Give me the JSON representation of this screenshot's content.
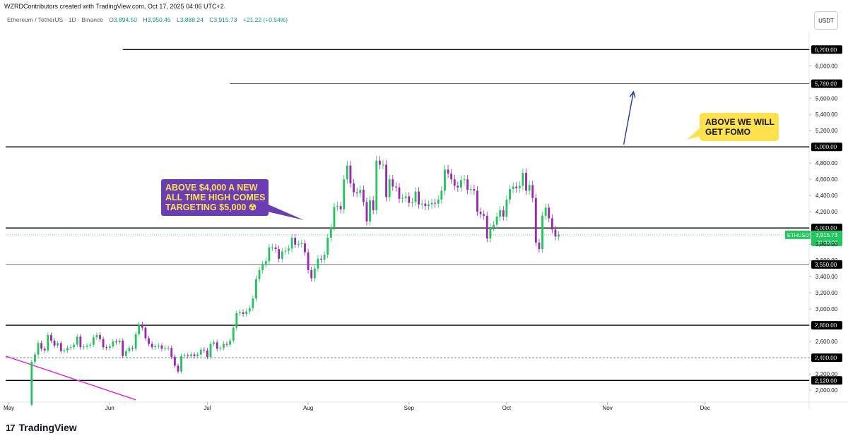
{
  "header": {
    "credit": "WZRDContributors created with TradingView.com, Oct 17, 2025 04:06 UTC+2",
    "symbol": "Ethereum / TetherUS · 1D · Binance",
    "o_label": "O",
    "open": "3,894.50",
    "h_label": "H",
    "high": "3,950.45",
    "l_label": "L",
    "low": "3,888.24",
    "c_label": "C",
    "close": "3,915.73",
    "change": "+21.22 (+0.54%)"
  },
  "unit": "USDT",
  "colors": {
    "up": "#089981",
    "upfill": "#22c55e",
    "down": "#9c27b0",
    "line": "#000000",
    "trend": "#e91ee0",
    "arrow": "#1e3aa8",
    "current": "#22c55e"
  },
  "notes": {
    "purple": "ABOVE $4,000 A NEW ALL TIME HIGH COMES TARGETING $5,000 ☢",
    "yellow": "ABOVE WE WILL GET FOMO"
  },
  "brand": {
    "logo": "17",
    "name": "TradingView"
  },
  "chart_data": {
    "type": "candlestick",
    "ylim": [
      1870,
      6420
    ],
    "y_ticks": [
      2000,
      2200,
      2400,
      2600,
      2800,
      3000,
      3200,
      3400,
      3600,
      3800,
      4000,
      4200,
      4400,
      4600,
      4800,
      5000,
      5200,
      5400,
      5600,
      5800,
      6000,
      6200
    ],
    "y_tick_labels": [
      "2,000.00",
      "2,200.00",
      "2,400.00",
      "2,600.00",
      "2,800.00",
      "3,000.00",
      "3,200.00",
      "3,400.00",
      "3,600.00",
      "3,800.00",
      "4,000.00",
      "4,200.00",
      "4,400.00",
      "4,600.00",
      "4,800.00",
      "5,000.00",
      "5,200.00",
      "5,400.00",
      "5,600.00",
      "5,800.00",
      "6,000.00",
      "6,200.00"
    ],
    "x_range": [
      "2025-04-30",
      "2026-01-02"
    ],
    "x_ticks": [
      {
        "date": "2025-05-01",
        "label": "May"
      },
      {
        "date": "2025-06-01",
        "label": "Jun"
      },
      {
        "date": "2025-07-01",
        "label": "Jul"
      },
      {
        "date": "2025-08-01",
        "label": "Aug"
      },
      {
        "date": "2025-09-01",
        "label": "Sep"
      },
      {
        "date": "2025-10-01",
        "label": "Oct"
      },
      {
        "date": "2025-11-01",
        "label": "Nov"
      },
      {
        "date": "2025-12-01",
        "label": "Dec"
      }
    ],
    "levels": [
      {
        "price": 6200,
        "label": "6,200.00",
        "from": "2025-06-05",
        "style": "solid"
      },
      {
        "price": 5780,
        "label": "5,780.00",
        "from": "2025-07-08",
        "style": "thin"
      },
      {
        "price": 5000,
        "label": "5,000.00",
        "from": "2025-04-30",
        "style": "solid"
      },
      {
        "price": 4000,
        "label": "4,000.00",
        "from": "2025-04-30",
        "style": "solid"
      },
      {
        "price": 3550,
        "label": "3,550.00",
        "from": "2025-04-30",
        "style": "thin"
      },
      {
        "price": 2800,
        "label": "2,800.00",
        "from": "2025-04-30",
        "style": "solid"
      },
      {
        "price": 2400,
        "label": "2,400.00",
        "from": "2025-04-30",
        "style": "dashed"
      },
      {
        "price": 2120,
        "label": "2,120.00",
        "from": "2025-04-30",
        "style": "solid"
      }
    ],
    "current": {
      "price": 3915.73,
      "symbol": "ETHUSDT",
      "label": "3,915.73",
      "countdown": "21:53:07"
    },
    "trendline": [
      {
        "date": "2025-04-30",
        "price": 2420
      },
      {
        "date": "2025-06-09",
        "price": 1880
      }
    ],
    "arrow": [
      {
        "date": "2025-11-06",
        "price": 5030
      },
      {
        "date": "2025-11-09",
        "price": 5680
      }
    ],
    "closes": [
      [
        "2025-05-07",
        1820
      ],
      [
        "2025-05-08",
        2350
      ],
      [
        "2025-05-09",
        2440
      ],
      [
        "2025-05-10",
        2580
      ],
      [
        "2025-05-11",
        2510
      ],
      [
        "2025-05-12",
        2490
      ],
      [
        "2025-05-13",
        2680
      ],
      [
        "2025-05-14",
        2610
      ],
      [
        "2025-05-15",
        2550
      ],
      [
        "2025-05-16",
        2580
      ],
      [
        "2025-05-17",
        2480
      ],
      [
        "2025-05-18",
        2490
      ],
      [
        "2025-05-19",
        2520
      ],
      [
        "2025-05-20",
        2530
      ],
      [
        "2025-05-21",
        2560
      ],
      [
        "2025-05-22",
        2660
      ],
      [
        "2025-05-23",
        2530
      ],
      [
        "2025-05-24",
        2535
      ],
      [
        "2025-05-25",
        2550
      ],
      [
        "2025-05-26",
        2560
      ],
      [
        "2025-05-27",
        2650
      ],
      [
        "2025-05-28",
        2680
      ],
      [
        "2025-05-29",
        2630
      ],
      [
        "2025-05-30",
        2530
      ],
      [
        "2025-05-31",
        2520
      ],
      [
        "2025-06-01",
        2540
      ],
      [
        "2025-06-02",
        2600
      ],
      [
        "2025-06-03",
        2590
      ],
      [
        "2025-06-04",
        2610
      ],
      [
        "2025-06-05",
        2420
      ],
      [
        "2025-06-06",
        2480
      ],
      [
        "2025-06-07",
        2520
      ],
      [
        "2025-06-08",
        2510
      ],
      [
        "2025-06-09",
        2690
      ],
      [
        "2025-06-10",
        2810
      ],
      [
        "2025-06-11",
        2770
      ],
      [
        "2025-06-12",
        2640
      ],
      [
        "2025-06-13",
        2570
      ],
      [
        "2025-06-14",
        2530
      ],
      [
        "2025-06-15",
        2540
      ],
      [
        "2025-06-16",
        2550
      ],
      [
        "2025-06-17",
        2510
      ],
      [
        "2025-06-18",
        2520
      ],
      [
        "2025-06-19",
        2520
      ],
      [
        "2025-06-20",
        2410
      ],
      [
        "2025-06-21",
        2300
      ],
      [
        "2025-06-22",
        2230
      ],
      [
        "2025-06-23",
        2420
      ],
      [
        "2025-06-24",
        2430
      ],
      [
        "2025-06-25",
        2420
      ],
      [
        "2025-06-26",
        2440
      ],
      [
        "2025-06-27",
        2420
      ],
      [
        "2025-06-28",
        2440
      ],
      [
        "2025-06-29",
        2500
      ],
      [
        "2025-06-30",
        2490
      ],
      [
        "2025-07-01",
        2410
      ],
      [
        "2025-07-02",
        2570
      ],
      [
        "2025-07-03",
        2590
      ],
      [
        "2025-07-04",
        2510
      ],
      [
        "2025-07-05",
        2520
      ],
      [
        "2025-07-06",
        2570
      ],
      [
        "2025-07-07",
        2560
      ],
      [
        "2025-07-08",
        2610
      ],
      [
        "2025-07-09",
        2770
      ],
      [
        "2025-07-10",
        2950
      ],
      [
        "2025-07-11",
        2960
      ],
      [
        "2025-07-12",
        2940
      ],
      [
        "2025-07-13",
        2970
      ],
      [
        "2025-07-14",
        3010
      ],
      [
        "2025-07-15",
        3130
      ],
      [
        "2025-07-16",
        3370
      ],
      [
        "2025-07-17",
        3480
      ],
      [
        "2025-07-18",
        3550
      ],
      [
        "2025-07-19",
        3590
      ],
      [
        "2025-07-20",
        3760
      ],
      [
        "2025-07-21",
        3760
      ],
      [
        "2025-07-22",
        3740
      ],
      [
        "2025-07-23",
        3620
      ],
      [
        "2025-07-24",
        3710
      ],
      [
        "2025-07-25",
        3720
      ],
      [
        "2025-07-26",
        3745
      ],
      [
        "2025-07-27",
        3880
      ],
      [
        "2025-07-28",
        3795
      ],
      [
        "2025-07-29",
        3805
      ],
      [
        "2025-07-30",
        3810
      ],
      [
        "2025-07-31",
        3700
      ],
      [
        "2025-08-01",
        3480
      ],
      [
        "2025-08-02",
        3380
      ],
      [
        "2025-08-03",
        3500
      ],
      [
        "2025-08-04",
        3620
      ],
      [
        "2025-08-05",
        3610
      ],
      [
        "2025-08-06",
        3670
      ],
      [
        "2025-08-07",
        3880
      ],
      [
        "2025-08-08",
        4010
      ],
      [
        "2025-08-09",
        4260
      ],
      [
        "2025-08-10",
        4270
      ],
      [
        "2025-08-11",
        4230
      ],
      [
        "2025-08-12",
        4600
      ],
      [
        "2025-08-13",
        4770
      ],
      [
        "2025-08-14",
        4550
      ],
      [
        "2025-08-15",
        4440
      ],
      [
        "2025-08-16",
        4430
      ],
      [
        "2025-08-17",
        4470
      ],
      [
        "2025-08-18",
        4320
      ],
      [
        "2025-08-19",
        4080
      ],
      [
        "2025-08-20",
        4340
      ],
      [
        "2025-08-21",
        4220
      ],
      [
        "2025-08-22",
        4830
      ],
      [
        "2025-08-23",
        4780
      ],
      [
        "2025-08-24",
        4780
      ],
      [
        "2025-08-25",
        4380
      ],
      [
        "2025-08-26",
        4600
      ],
      [
        "2025-08-27",
        4510
      ],
      [
        "2025-08-28",
        4500
      ],
      [
        "2025-08-29",
        4360
      ],
      [
        "2025-08-30",
        4370
      ],
      [
        "2025-08-31",
        4390
      ],
      [
        "2025-09-01",
        4310
      ],
      [
        "2025-09-02",
        4320
      ],
      [
        "2025-09-03",
        4450
      ],
      [
        "2025-09-04",
        4290
      ],
      [
        "2025-09-05",
        4300
      ],
      [
        "2025-09-06",
        4270
      ],
      [
        "2025-09-07",
        4290
      ],
      [
        "2025-09-08",
        4310
      ],
      [
        "2025-09-09",
        4300
      ],
      [
        "2025-09-10",
        4350
      ],
      [
        "2025-09-11",
        4460
      ],
      [
        "2025-09-12",
        4720
      ],
      [
        "2025-09-13",
        4670
      ],
      [
        "2025-09-14",
        4600
      ],
      [
        "2025-09-15",
        4520
      ],
      [
        "2025-09-16",
        4500
      ],
      [
        "2025-09-17",
        4590
      ],
      [
        "2025-09-18",
        4600
      ],
      [
        "2025-09-19",
        4470
      ],
      [
        "2025-09-20",
        4480
      ],
      [
        "2025-09-21",
        4460
      ],
      [
        "2025-09-22",
        4200
      ],
      [
        "2025-09-23",
        4170
      ],
      [
        "2025-09-24",
        4150
      ],
      [
        "2025-09-25",
        3870
      ],
      [
        "2025-09-26",
        4010
      ],
      [
        "2025-09-27",
        4040
      ],
      [
        "2025-09-28",
        4140
      ],
      [
        "2025-09-29",
        4220
      ],
      [
        "2025-09-30",
        4140
      ],
      [
        "2025-10-01",
        4350
      ],
      [
        "2025-10-02",
        4480
      ],
      [
        "2025-10-03",
        4510
      ],
      [
        "2025-10-04",
        4490
      ],
      [
        "2025-10-05",
        4520
      ],
      [
        "2025-10-06",
        4680
      ],
      [
        "2025-10-07",
        4460
      ],
      [
        "2025-10-08",
        4530
      ],
      [
        "2025-10-09",
        4370
      ],
      [
        "2025-10-10",
        3820
      ],
      [
        "2025-10-11",
        3740
      ],
      [
        "2025-10-12",
        4150
      ],
      [
        "2025-10-13",
        4250
      ],
      [
        "2025-10-14",
        4120
      ],
      [
        "2025-10-15",
        3980
      ],
      [
        "2025-10-16",
        3894
      ],
      [
        "2025-10-17",
        3915
      ]
    ]
  }
}
